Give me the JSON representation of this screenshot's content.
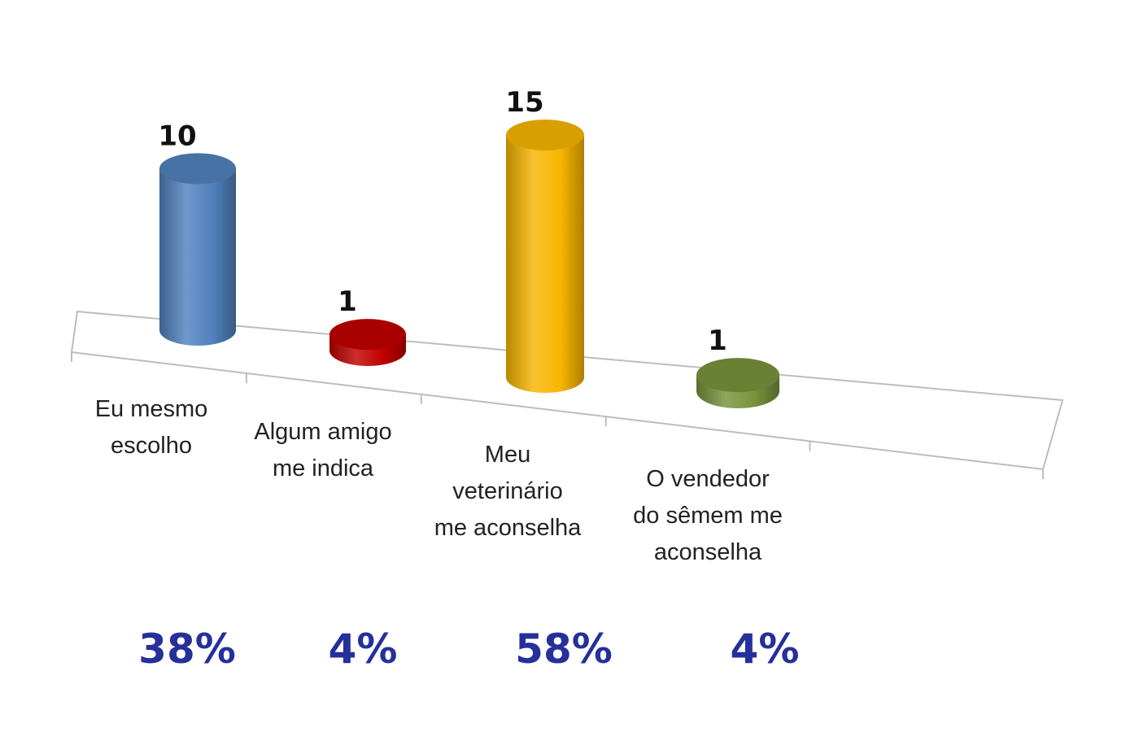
{
  "chart_data": {
    "type": "bar",
    "style": "3d-cylinder",
    "grid": false,
    "legend": "none",
    "categories": [
      [
        "Eu mesmo",
        "escolho"
      ],
      [
        "Algum amigo",
        "me indica"
      ],
      [
        "Meu",
        "veterinário",
        "me aconselha"
      ],
      [
        "O vendedor",
        "do sêmem me",
        "aconselha"
      ]
    ],
    "values": [
      10,
      1,
      15,
      1
    ],
    "percentages": [
      "38%",
      "4%",
      "58%",
      "4%"
    ],
    "colors": [
      "#4f81bd",
      "#c00000",
      "#f7b500",
      "#77933c"
    ],
    "ylim": [
      0,
      15
    ]
  }
}
